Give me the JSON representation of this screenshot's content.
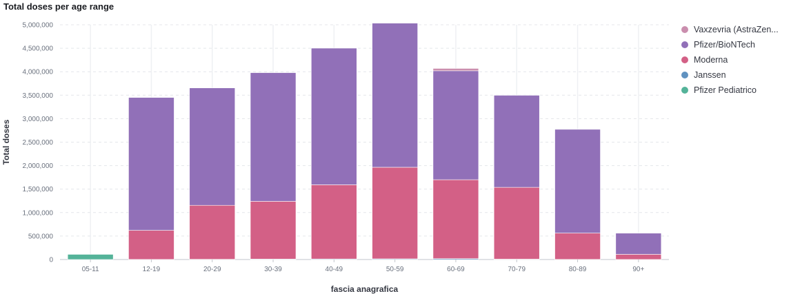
{
  "chart_data": {
    "type": "bar",
    "stacked": true,
    "title": "Total doses per age range",
    "xlabel": "fascia anagrafica",
    "ylabel": "Total doses",
    "ylim": [
      0,
      5000000
    ],
    "yticks": [
      "0",
      "500,000",
      "1,000,000",
      "1,500,000",
      "2,000,000",
      "2,500,000",
      "3,000,000",
      "3,500,000",
      "4,000,000",
      "4,500,000",
      "5,000,000"
    ],
    "categories": [
      "05-11",
      "12-19",
      "20-29",
      "30-39",
      "40-49",
      "50-59",
      "60-69",
      "70-79",
      "80-89",
      "90+"
    ],
    "series": [
      {
        "name": "Pfizer Pediatrico",
        "color": "#54b399",
        "values": [
          110000,
          0,
          0,
          0,
          0,
          0,
          0,
          0,
          0,
          0
        ]
      },
      {
        "name": "Janssen",
        "color": "#6092c0",
        "values": [
          0,
          2000,
          5000,
          10000,
          12000,
          15000,
          20000,
          8000,
          3000,
          1000
        ]
      },
      {
        "name": "Moderna",
        "color": "#d36086",
        "values": [
          0,
          620000,
          1150000,
          1230000,
          1580000,
          1950000,
          1680000,
          1530000,
          560000,
          110000
        ]
      },
      {
        "name": "Pfizer/BioNTech",
        "color": "#9170b8",
        "values": [
          0,
          2830000,
          2500000,
          2740000,
          2910000,
          3070000,
          2320000,
          1960000,
          2210000,
          450000
        ]
      },
      {
        "name": "Vaxzevria (AstraZen...",
        "color": "#ca8eae",
        "values": [
          0,
          0,
          0,
          0,
          0,
          0,
          50000,
          0,
          0,
          0
        ]
      }
    ],
    "legend_position": "right",
    "grid": true
  },
  "legend": [
    {
      "label": "Vaxzevria (AstraZen...",
      "color": "#ca8eae"
    },
    {
      "label": "Pfizer/BioNTech",
      "color": "#9170b8"
    },
    {
      "label": "Moderna",
      "color": "#d36086"
    },
    {
      "label": "Janssen",
      "color": "#6092c0"
    },
    {
      "label": "Pfizer Pediatrico",
      "color": "#54b399"
    }
  ]
}
